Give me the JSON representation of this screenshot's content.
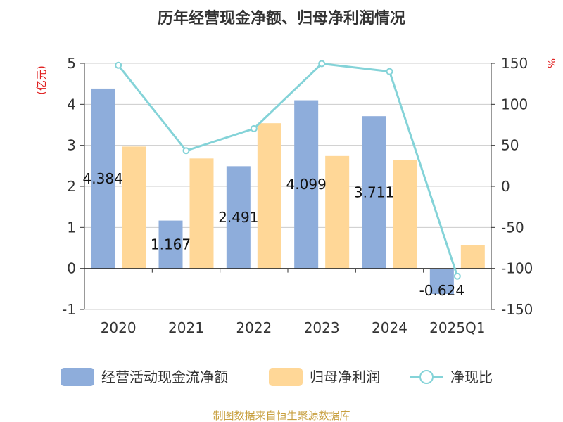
{
  "chart_data": {
    "type": "bar",
    "title": "历年经营现金净额、归母净利润情况",
    "categories": [
      "2020",
      "2021",
      "2022",
      "2023",
      "2024",
      "2025Q1"
    ],
    "series": [
      {
        "name": "经营活动现金流净额",
        "type": "bar",
        "axis": "left",
        "color": "#8eaddb",
        "values": [
          4.384,
          1.167,
          2.491,
          4.099,
          3.711,
          -0.624
        ]
      },
      {
        "name": "归母净利润",
        "type": "bar",
        "axis": "left",
        "color": "#ffd797",
        "values": [
          2.97,
          2.68,
          3.54,
          2.74,
          2.65,
          0.57
        ]
      },
      {
        "name": "净现比",
        "type": "line",
        "axis": "right",
        "color": "#84d3d8",
        "values": [
          147.6,
          43.5,
          70.4,
          149.6,
          140.0,
          -109.5
        ]
      }
    ],
    "data_labels": [
      "4.384",
      "1.167",
      "2.491",
      "4.099",
      "3.711",
      "-0.624"
    ],
    "y_left": {
      "unit": "(亿元)",
      "ylim": [
        -1,
        5
      ],
      "ticks": [
        "-1",
        "0",
        "1",
        "2",
        "3",
        "4",
        "5"
      ]
    },
    "y_right": {
      "unit": "%",
      "ylim": [
        -150,
        150
      ],
      "ticks": [
        "-150",
        "-100",
        "-50",
        "0",
        "50",
        "100",
        "150"
      ]
    },
    "grid": true,
    "legend_position": "bottom",
    "source": "制图数据来自恒生聚源数据库"
  }
}
